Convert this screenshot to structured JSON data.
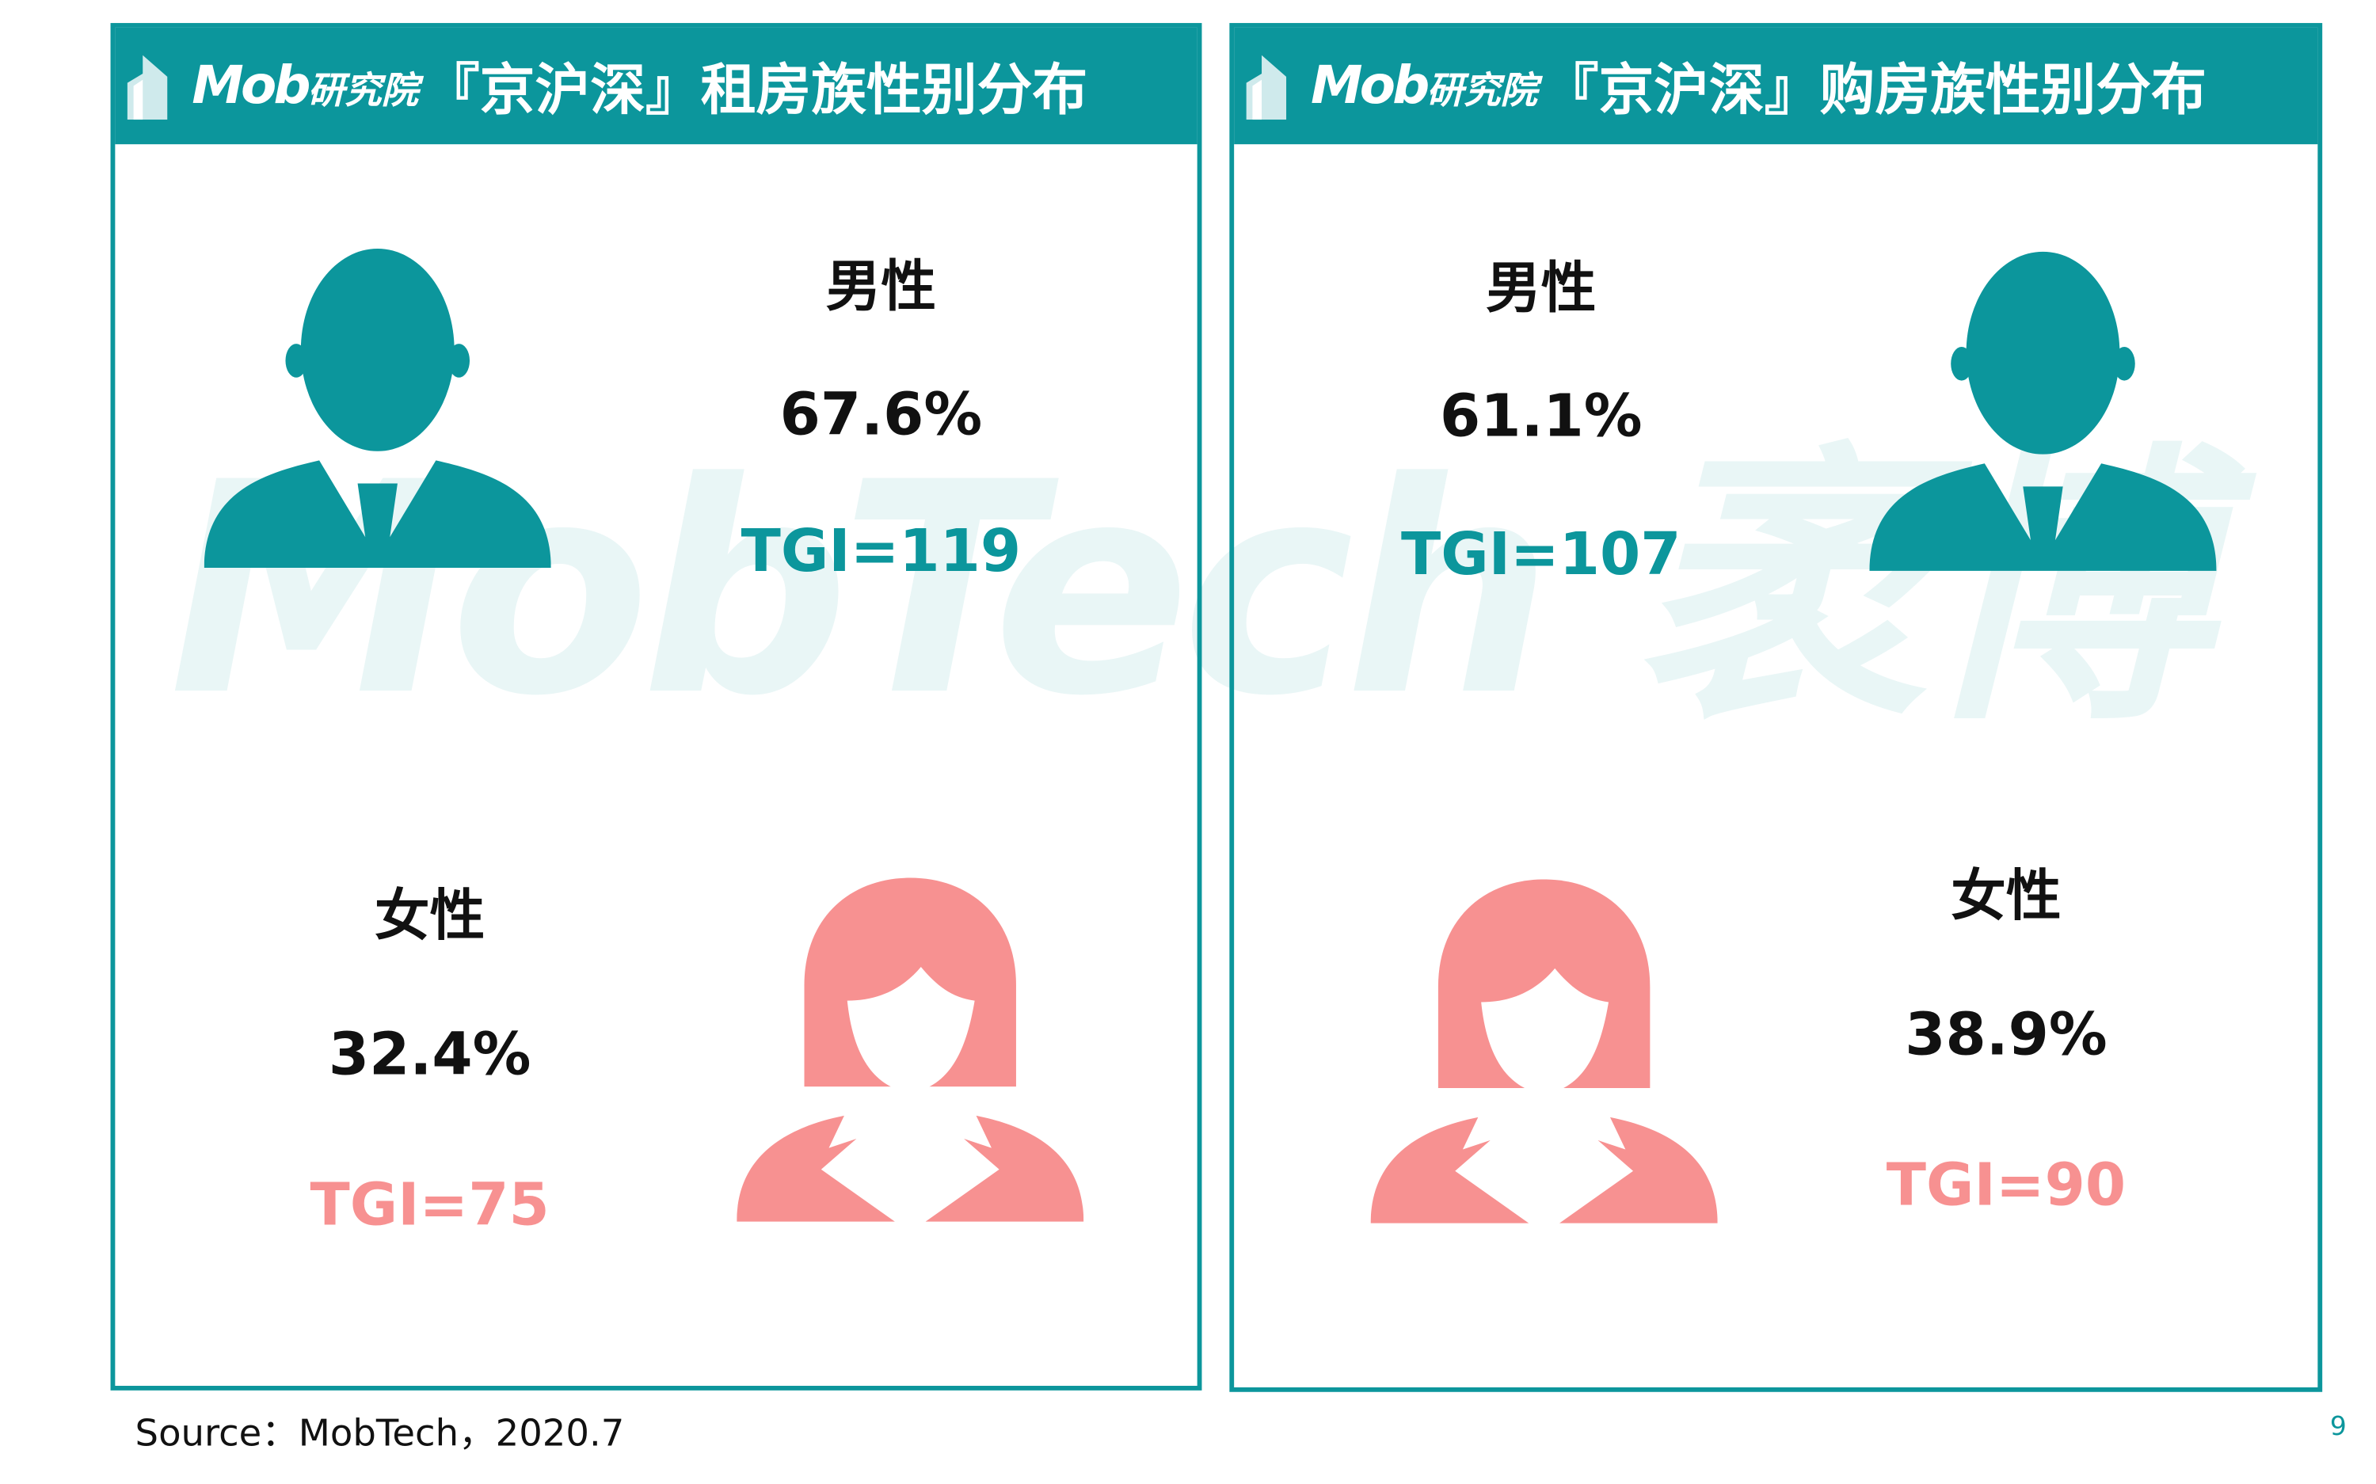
{
  "watermark": "MobTech 袤博",
  "colors": {
    "teal": "#0c969c",
    "pink": "#f79191"
  },
  "panels": [
    {
      "logo_mob": "Mob",
      "logo_institute": "研究院",
      "title": "『京沪深』租房族性别分布",
      "male": {
        "label": "男性",
        "percent": "67.6%",
        "tgi": "TGI=119"
      },
      "female": {
        "label": "女性",
        "percent": "32.4%",
        "tgi": "TGI=75"
      }
    },
    {
      "logo_mob": "Mob",
      "logo_institute": "研究院",
      "title": "『京沪深』购房族性别分布",
      "male": {
        "label": "男性",
        "percent": "61.1%",
        "tgi": "TGI=107"
      },
      "female": {
        "label": "女性",
        "percent": "38.9%",
        "tgi": "TGI=90"
      }
    }
  ],
  "footer": {
    "source": "Source：MobTech，2020.7",
    "page": "9"
  }
}
